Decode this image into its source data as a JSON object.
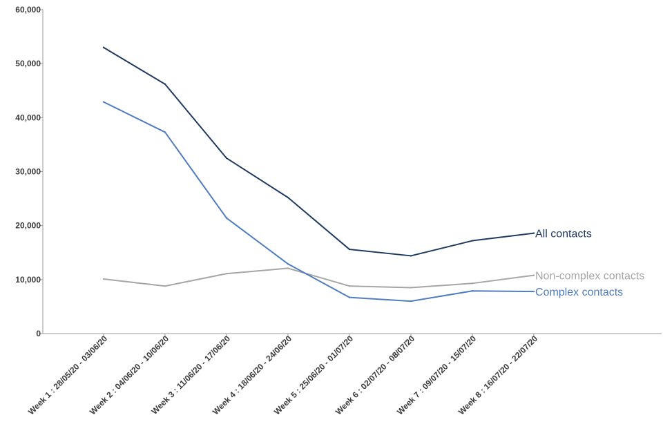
{
  "chart_data": {
    "type": "line",
    "title": "",
    "xlabel": "",
    "ylabel": "",
    "ylim": [
      0,
      60000
    ],
    "yticks": [
      0,
      10000,
      20000,
      30000,
      40000,
      50000,
      60000
    ],
    "ytick_labels": [
      "0",
      "10,000",
      "20,000",
      "30,000",
      "40,000",
      "50,000",
      "60,000"
    ],
    "grid": false,
    "legend": "direct labels at line ends",
    "categories": [
      "Week 1 : 28/05/20 - 03/06/20",
      "Week 2 : 04/06/20 - 10/06/20",
      "Week 3 : 11/06/20 - 17/06/20",
      "Week 4 : 18/06/20 - 24/06/20",
      "Week 5 : 25/06/20 - 01/07/20",
      "Week 6 : 02/07/20 - 08/07/20",
      "Week 7 : 09/07/20 - 15/07/20",
      "Week 8 : 16/07/20 - 22/07/20"
    ],
    "series": [
      {
        "name": "All contacts",
        "color": "#1f3a60",
        "values": [
          53000,
          46200,
          32500,
          25200,
          15600,
          14400,
          17200,
          18600
        ]
      },
      {
        "name": "Non-complex contacts",
        "color": "#a6a6a6",
        "values": [
          10100,
          8800,
          11100,
          12100,
          8800,
          8500,
          9300,
          10800
        ]
      },
      {
        "name": "Complex contacts",
        "color": "#4f7cbf",
        "values": [
          42900,
          37300,
          21400,
          12900,
          6700,
          6000,
          7900,
          7800
        ]
      }
    ]
  }
}
